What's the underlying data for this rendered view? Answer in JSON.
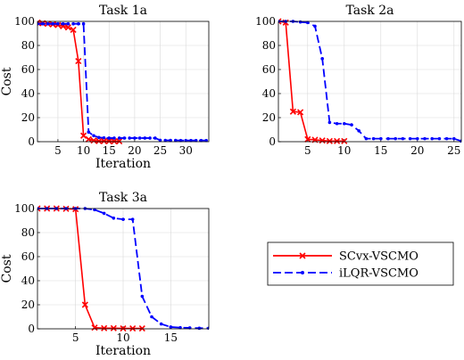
{
  "colors": {
    "scvx": "#ff0000",
    "ilqr": "#0000ff"
  },
  "legend": {
    "items": [
      "SCvx-VSCMO",
      "iLQR-VSCMO"
    ]
  },
  "chart_data": [
    {
      "type": "line",
      "title": "Task 1a",
      "xlabel": "Iteration",
      "ylabel": "Cost",
      "xlim": [
        1,
        34.5
      ],
      "ylim": [
        0,
        100
      ],
      "xticks": [
        5,
        10,
        15,
        20,
        25,
        30
      ],
      "yticks": [
        0,
        20,
        40,
        60,
        80,
        100
      ],
      "grid": true,
      "series": [
        {
          "name": "SCvx-VSCMO",
          "marker": "x",
          "dash": "solid",
          "x": [
            1,
            2,
            3,
            4,
            5,
            6,
            7,
            8,
            9,
            10,
            11,
            12,
            13,
            14,
            15,
            16,
            17
          ],
          "y": [
            99,
            98.5,
            98,
            97.5,
            97,
            96,
            95,
            93,
            67,
            5,
            2,
            1,
            0.5,
            0.5,
            0.4,
            0.3,
            0.3
          ]
        },
        {
          "name": "iLQR-VSCMO",
          "marker": "dot",
          "dash": "dashed",
          "x": [
            1,
            2,
            3,
            4,
            5,
            6,
            7,
            8,
            9,
            10,
            11,
            12,
            13,
            14,
            15,
            16,
            17,
            18,
            19,
            20,
            21,
            22,
            23,
            24,
            25,
            26,
            27,
            28,
            29,
            30,
            31,
            32,
            33,
            34
          ],
          "y": [
            98,
            98,
            98,
            98,
            98,
            98,
            98,
            98,
            98,
            98,
            8,
            5,
            3.5,
            3.2,
            3,
            3,
            3,
            3,
            3,
            3,
            3,
            3,
            3,
            3,
            1.2,
            1.1,
            1.1,
            1.1,
            1,
            1,
            1,
            1,
            1,
            1
          ]
        }
      ]
    },
    {
      "type": "line",
      "title": "Task 2a",
      "xlabel": "",
      "ylabel": "",
      "xlim": [
        1,
        26
      ],
      "ylim": [
        0,
        100
      ],
      "xticks": [
        5,
        10,
        15,
        20,
        25
      ],
      "yticks": [
        0,
        20,
        40,
        60,
        80,
        100
      ],
      "grid": true,
      "series": [
        {
          "name": "SCvx-VSCMO",
          "marker": "x",
          "dash": "solid",
          "x": [
            1,
            2,
            3,
            4,
            5,
            6,
            7,
            8,
            9,
            10
          ],
          "y": [
            100,
            99,
            25,
            24.5,
            2,
            1.5,
            1,
            0.5,
            0.5,
            0.5
          ]
        },
        {
          "name": "iLQR-VSCMO",
          "marker": "dot",
          "dash": "dashed",
          "x": [
            1,
            2,
            3,
            4,
            5,
            6,
            7,
            8,
            9,
            10,
            11,
            12,
            13,
            14,
            15,
            16,
            17,
            18,
            19,
            20,
            21,
            22,
            23,
            24,
            25,
            26
          ],
          "y": [
            100,
            100,
            100,
            99.5,
            99,
            96,
            69,
            16,
            15,
            15,
            14,
            9,
            2.5,
            2.5,
            2.5,
            2.5,
            2.5,
            2.5,
            2.5,
            2.5,
            2.5,
            2.5,
            2.5,
            2.5,
            2.5,
            0.5
          ]
        }
      ]
    },
    {
      "type": "line",
      "title": "Task 3a",
      "xlabel": "Iteration",
      "ylabel": "Cost",
      "xlim": [
        1,
        19
      ],
      "ylim": [
        0,
        100
      ],
      "xticks": [
        5,
        10,
        15
      ],
      "yticks": [
        0,
        20,
        40,
        60,
        80,
        100
      ],
      "grid": true,
      "series": [
        {
          "name": "SCvx-VSCMO",
          "marker": "x",
          "dash": "solid",
          "x": [
            1,
            2,
            3,
            4,
            5,
            6,
            7,
            8,
            9,
            10,
            11,
            12
          ],
          "y": [
            100,
            100,
            100,
            99.8,
            99.5,
            20,
            1,
            0.5,
            0.5,
            0.3,
            0.3,
            0.3
          ]
        },
        {
          "name": "iLQR-VSCMO",
          "marker": "dot",
          "dash": "dashed",
          "x": [
            1,
            2,
            3,
            4,
            5,
            6,
            7,
            8,
            9,
            10,
            11,
            12,
            13,
            14,
            15,
            16,
            17,
            18,
            19
          ],
          "y": [
            100,
            100,
            100,
            100,
            100,
            100,
            99,
            96,
            92,
            91,
            91,
            27,
            10,
            4,
            1.5,
            1,
            0.8,
            0.5,
            0.5
          ]
        }
      ]
    }
  ]
}
